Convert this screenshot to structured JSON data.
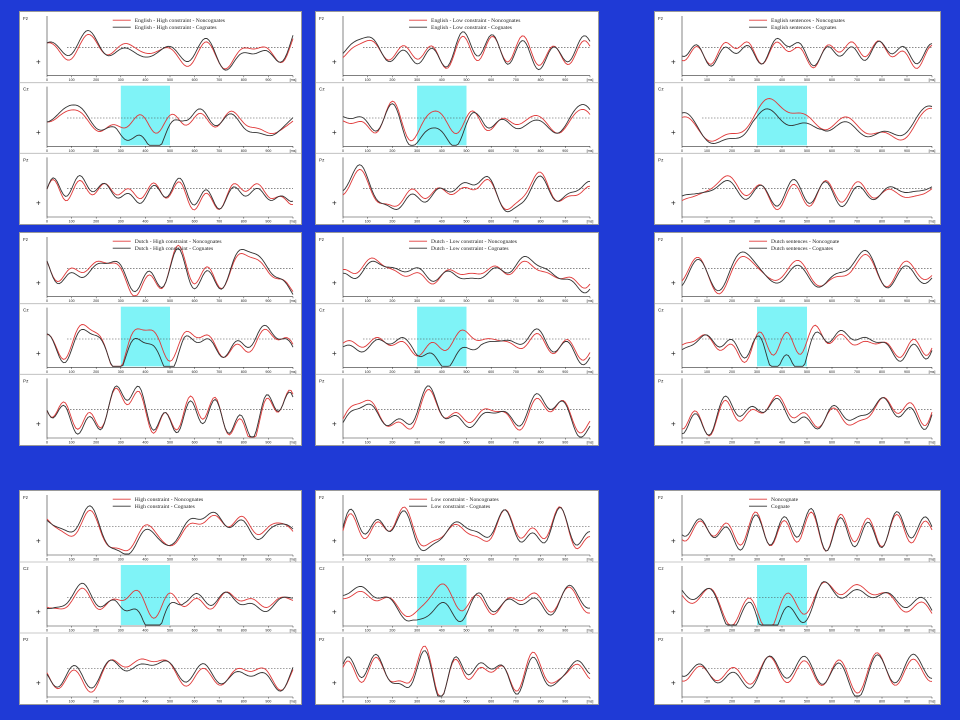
{
  "colors": {
    "background": "#1f3ad6",
    "highlight": "#7ff3f7",
    "noncognates": "#e03a3a",
    "cognates": "#333333"
  },
  "chart_data": [
    {
      "type": "line",
      "legend": [
        "English - High constraint - Noncognates",
        "English - High constraint - Cognates"
      ],
      "channels": [
        "Fz",
        "Cz",
        "Pz"
      ],
      "x_ticks": [
        "0",
        "100",
        "200",
        "300",
        "400",
        "500",
        "600",
        "700",
        "800",
        "900",
        "[ms]"
      ],
      "xlim": [
        0,
        1000
      ],
      "highlight_ms": [
        300,
        500
      ],
      "polarity_marker": "+"
    },
    {
      "type": "line",
      "legend": [
        "English - Low constraint - Noncognates",
        "English - Low constraint - Cognates"
      ],
      "channels": [
        "Fz",
        "Cz",
        "Pz"
      ],
      "x_ticks": [
        "0",
        "100",
        "200",
        "300",
        "400",
        "500",
        "600",
        "700",
        "800",
        "900",
        "[ms]"
      ],
      "xlim": [
        0,
        1000
      ],
      "highlight_ms": [
        300,
        500
      ],
      "polarity_marker": "+"
    },
    {
      "type": "line",
      "legend": [
        "English sentences - Noncognates",
        "English sentences - Cognates"
      ],
      "channels": [
        "Fz",
        "Cz",
        "Pz"
      ],
      "x_ticks": [
        "0",
        "100",
        "200",
        "300",
        "400",
        "500",
        "600",
        "700",
        "800",
        "900",
        "[ms]"
      ],
      "xlim": [
        0,
        1000
      ],
      "highlight_ms": [
        300,
        500
      ],
      "polarity_marker": "+"
    },
    {
      "type": "line",
      "legend": [
        "Dutch - High constraint - Noncognates",
        "Dutch - High constraint - Cognates"
      ],
      "channels": [
        "Fz",
        "Cz",
        "Pz"
      ],
      "x_ticks": [
        "0",
        "100",
        "200",
        "300",
        "400",
        "500",
        "600",
        "700",
        "800",
        "900",
        "[ms]"
      ],
      "xlim": [
        0,
        1000
      ],
      "highlight_ms": [
        300,
        500
      ],
      "polarity_marker": "+"
    },
    {
      "type": "line",
      "legend": [
        "Dutch - Low constraint - Noncognates",
        "Dutch - Low constraint - Cognates"
      ],
      "channels": [
        "Fz",
        "Cz",
        "Pz"
      ],
      "x_ticks": [
        "0",
        "100",
        "200",
        "300",
        "400",
        "500",
        "600",
        "700",
        "800",
        "900",
        "[ms]"
      ],
      "xlim": [
        0,
        1000
      ],
      "highlight_ms": [
        300,
        500
      ],
      "polarity_marker": "+"
    },
    {
      "type": "line",
      "legend": [
        "Dutch sentences - Noncognate",
        "Dutch sentences - Cognates"
      ],
      "channels": [
        "Fz",
        "Cz",
        "Pz"
      ],
      "x_ticks": [
        "0",
        "100",
        "200",
        "300",
        "400",
        "500",
        "600",
        "700",
        "800",
        "900",
        "[ms]"
      ],
      "xlim": [
        0,
        1000
      ],
      "highlight_ms": [
        300,
        500
      ],
      "polarity_marker": "+"
    },
    {
      "type": "line",
      "legend": [
        "High constraint - Noncognates",
        "High constraint - Cognates"
      ],
      "channels": [
        "Fz",
        "Cz",
        "Pz"
      ],
      "x_ticks": [
        "0",
        "100",
        "200",
        "300",
        "400",
        "500",
        "600",
        "700",
        "800",
        "900",
        "[ms]"
      ],
      "xlim": [
        0,
        1000
      ],
      "highlight_ms": [
        300,
        500
      ],
      "polarity_marker": "+"
    },
    {
      "type": "line",
      "legend": [
        "Low constraint - Noncognates",
        "Low constraint - Cognates"
      ],
      "channels": [
        "Fz",
        "Cz",
        "Pz"
      ],
      "x_ticks": [
        "0",
        "100",
        "200",
        "300",
        "400",
        "500",
        "600",
        "700",
        "800",
        "900",
        "[ms]"
      ],
      "xlim": [
        0,
        1000
      ],
      "highlight_ms": [
        300,
        500
      ],
      "polarity_marker": "+"
    },
    {
      "type": "line",
      "legend": [
        "Noncognate",
        "Cognate"
      ],
      "channels": [
        "Fz",
        "Cz",
        "Pz"
      ],
      "x_ticks": [
        "0",
        "100",
        "200",
        "300",
        "400",
        "500",
        "600",
        "700",
        "800",
        "900",
        "[ms]"
      ],
      "xlim": [
        0,
        1000
      ],
      "highlight_ms": [
        300,
        500
      ],
      "polarity_marker": "+"
    }
  ]
}
